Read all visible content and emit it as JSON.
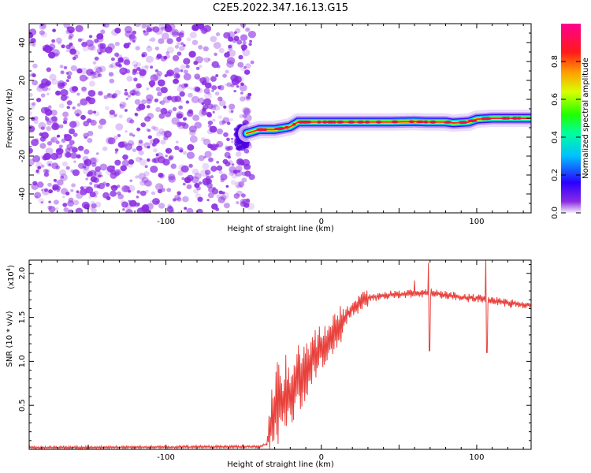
{
  "title": "C2E5.2022.347.16.13.G15",
  "chart_data": [
    {
      "type": "heatmap",
      "xlabel": "Height of straight line (km)",
      "ylabel": "Frequency (Hz)",
      "xlim": [
        -188,
        135
      ],
      "ylim": [
        -50,
        50
      ],
      "xticks": [
        -100,
        0,
        100
      ],
      "yticks": [
        -40,
        -20,
        0,
        20,
        40
      ],
      "noise_region_x": [
        -188,
        -48
      ],
      "ridge": {
        "x": [
          -48,
          -40,
          -30,
          -20,
          -15,
          0,
          20,
          40,
          60,
          70,
          80,
          85,
          95,
          100,
          110,
          135
        ],
        "frequency": [
          -8,
          -6,
          -6,
          -4.5,
          -2,
          -2,
          -2,
          -2,
          -1.8,
          -2,
          -2,
          -2.5,
          -2,
          -0.5,
          0,
          0
        ]
      },
      "colorbar": {
        "label": "Normalized spectral amplitude",
        "range": [
          0,
          1
        ],
        "ticks": [
          0.0,
          0.2,
          0.4,
          0.6,
          0.8
        ],
        "tick_labels": [
          "0.0",
          "0.2",
          "0.4",
          "0.6",
          "0.8"
        ]
      }
    },
    {
      "type": "line",
      "xlabel": "Height of straight line (km)",
      "ylabel": "SNR (10 * v/v)",
      "y_multiplier": "(x10",
      "y_multiplier_exp": "4",
      "xlim": [
        -188,
        135
      ],
      "ylim": [
        0,
        2.15
      ],
      "xticks": [
        -100,
        0,
        100
      ],
      "yticks": [
        0.5,
        1.0,
        1.5,
        2.0
      ],
      "ytick_labels": [
        "0.5",
        "1.0",
        "1.5",
        "2.0"
      ],
      "series": [
        {
          "color": "#e8413c",
          "x": [
            -188,
            -40,
            -35,
            -30,
            -25,
            -20,
            -15,
            -10,
            -5,
            0,
            5,
            10,
            15,
            20,
            25,
            30,
            40,
            50,
            60,
            70,
            80,
            90,
            100,
            105,
            110,
            115,
            120,
            130,
            135
          ],
          "y": [
            0.02,
            0.03,
            0.06,
            0.45,
            0.55,
            0.65,
            0.8,
            0.9,
            1.0,
            1.15,
            1.25,
            1.35,
            1.5,
            1.6,
            1.68,
            1.72,
            1.75,
            1.76,
            1.77,
            1.78,
            1.75,
            1.73,
            1.72,
            1.7,
            1.69,
            1.68,
            1.66,
            1.64,
            1.63
          ]
        }
      ]
    }
  ],
  "colors": {
    "noise": "#8a2be2",
    "line": "#e8413c"
  }
}
